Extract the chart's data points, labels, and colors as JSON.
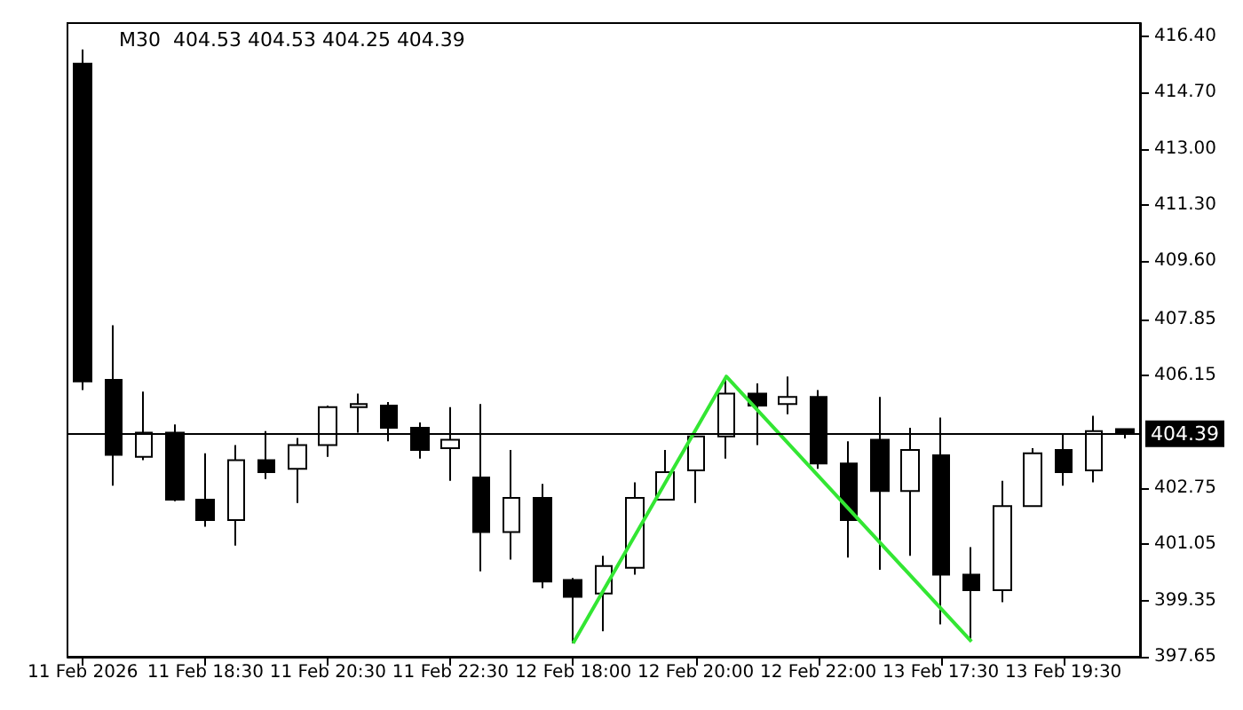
{
  "chart_data": {
    "type": "candlestick",
    "title": "M30  404.53 404.53 404.25 404.39",
    "categories": [
      "11 Feb 2026",
      null,
      null,
      null,
      "11 Feb 18:30",
      null,
      null,
      null,
      "11 Feb 20:30",
      null,
      null,
      null,
      "11 Feb 22:30",
      null,
      null,
      null,
      "12 Feb 18:00",
      null,
      null,
      null,
      "12 Feb 20:00",
      null,
      null,
      null,
      "12 Feb 22:00",
      null,
      null,
      null,
      "13 Feb 17:30",
      null,
      null,
      null,
      "13 Feb 19:30",
      null,
      null
    ],
    "ohlc": [
      [
        415.57,
        416.0,
        405.71,
        405.97
      ],
      [
        406.02,
        407.67,
        402.82,
        403.75
      ],
      [
        403.69,
        405.66,
        403.59,
        404.42
      ],
      [
        404.42,
        404.67,
        402.35,
        402.4
      ],
      [
        402.4,
        403.8,
        401.58,
        401.78
      ],
      [
        401.78,
        404.05,
        401.01,
        403.59
      ],
      [
        403.59,
        404.47,
        403.02,
        403.23
      ],
      [
        403.33,
        404.26,
        402.3,
        404.05
      ],
      [
        404.05,
        405.24,
        403.69,
        405.19
      ],
      [
        405.19,
        405.6,
        404.42,
        405.29
      ],
      [
        405.24,
        405.35,
        404.16,
        404.57
      ],
      [
        404.57,
        404.73,
        403.64,
        403.9
      ],
      [
        403.95,
        405.19,
        402.97,
        404.21
      ],
      [
        403.07,
        405.29,
        400.23,
        401.42
      ],
      [
        401.42,
        403.9,
        400.59,
        402.45
      ],
      [
        402.45,
        402.87,
        399.72,
        399.92
      ],
      [
        399.97,
        400.03,
        398.06,
        399.46
      ],
      [
        399.56,
        400.7,
        398.42,
        400.39
      ],
      [
        400.34,
        402.92,
        400.13,
        402.45
      ],
      [
        402.4,
        403.9,
        402.4,
        403.23
      ],
      [
        403.28,
        404.31,
        402.3,
        404.31
      ],
      [
        404.31,
        406.12,
        403.64,
        405.6
      ],
      [
        405.6,
        405.91,
        404.05,
        405.24
      ],
      [
        405.29,
        406.12,
        404.98,
        405.5
      ],
      [
        405.5,
        405.71,
        403.33,
        403.49
      ],
      [
        403.49,
        404.16,
        400.65,
        401.78
      ],
      [
        404.21,
        405.5,
        400.28,
        402.66
      ],
      [
        402.66,
        404.57,
        400.7,
        403.9
      ],
      [
        403.74,
        404.88,
        398.63,
        400.13
      ],
      [
        400.13,
        400.96,
        398.11,
        399.66
      ],
      [
        399.66,
        402.97,
        399.3,
        402.2
      ],
      [
        402.2,
        403.95,
        402.2,
        403.8
      ],
      [
        403.9,
        404.36,
        402.82,
        403.23
      ],
      [
        403.28,
        404.93,
        402.92,
        404.47
      ],
      [
        404.53,
        404.53,
        404.25,
        404.39
      ]
    ],
    "series": [
      {
        "type": "line",
        "color": "#33e633",
        "values": [
          null,
          null,
          null,
          null,
          null,
          null,
          null,
          null,
          null,
          null,
          null,
          null,
          null,
          null,
          null,
          null,
          398.06,
          null,
          null,
          null,
          null,
          406.12,
          null,
          null,
          null,
          null,
          null,
          null,
          null,
          398.11,
          null,
          null,
          null,
          null,
          null
        ]
      }
    ],
    "ylim": [
      397.65,
      416.8
    ],
    "yticks": [
      397.65,
      399.35,
      401.05,
      402.75,
      406.15,
      407.85,
      {
        "value": 409.6,
        "label": "409.60"
      },
      {
        "value": 411.3,
        "label": "411.30"
      },
      {
        "value": 413.0,
        "label": "413.00"
      },
      {
        "value": 414.7,
        "label": "414.70"
      },
      {
        "value": 416.4,
        "label": "416.40"
      }
    ],
    "ref_lines": [
      {
        "axis": "y",
        "value": 404.39,
        "label": "404.39"
      }
    ],
    "grid": false,
    "marker": "none"
  }
}
